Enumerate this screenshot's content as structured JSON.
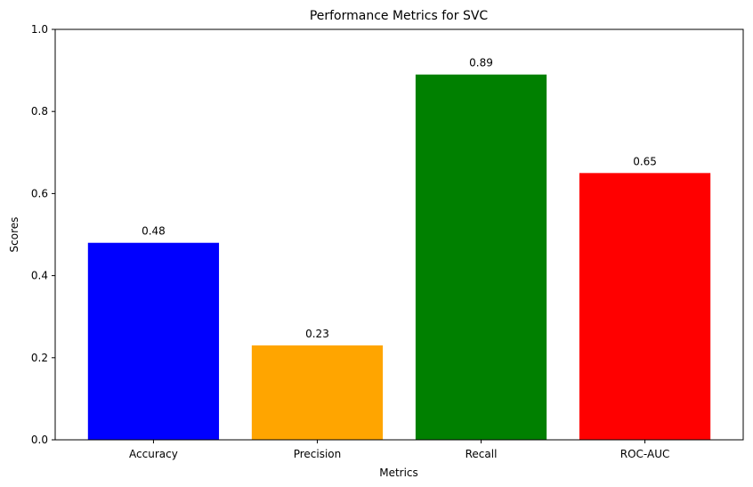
{
  "chart_data": {
    "type": "bar",
    "title": "Performance Metrics for SVC",
    "xlabel": "Metrics",
    "ylabel": "Scores",
    "categories": [
      "Accuracy",
      "Precision",
      "Recall",
      "ROC-AUC"
    ],
    "values": [
      0.48,
      0.23,
      0.89,
      0.65
    ],
    "value_labels": [
      "0.48",
      "0.23",
      "0.89",
      "0.65"
    ],
    "colors": [
      "#0000ff",
      "#ffa500",
      "#008000",
      "#ff0000"
    ],
    "ylim": [
      0,
      1
    ],
    "yticks": [
      0.0,
      0.2,
      0.4,
      0.6,
      0.8,
      1.0
    ],
    "ytick_labels": [
      "0.0",
      "0.2",
      "0.4",
      "0.6",
      "0.8",
      "1.0"
    ],
    "grid": false,
    "legend": "none"
  }
}
